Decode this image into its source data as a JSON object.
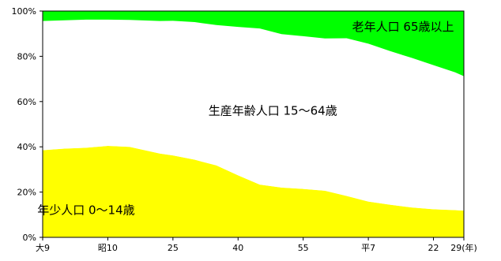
{
  "chart_data": {
    "type": "area",
    "stacked": true,
    "x": [
      1920,
      1925,
      1930,
      1935,
      1940,
      1947,
      1950,
      1955,
      1960,
      1965,
      1970,
      1975,
      1980,
      1985,
      1990,
      1995,
      2000,
      2005,
      2010,
      2015,
      2017
    ],
    "xticks": [
      {
        "x": 1920,
        "label": "大9"
      },
      {
        "x": 1935,
        "label": "昭10"
      },
      {
        "x": 1950,
        "label": "25"
      },
      {
        "x": 1965,
        "label": "40"
      },
      {
        "x": 1980,
        "label": "55"
      },
      {
        "x": 1995,
        "label": "平7"
      },
      {
        "x": 2010,
        "label": "22"
      },
      {
        "x": 2017,
        "label": "29(年)"
      }
    ],
    "xlim": [
      1920,
      2017
    ],
    "ylim": [
      0,
      100
    ],
    "yticks": [
      "0%",
      "20%",
      "40%",
      "60%",
      "80%",
      "100%"
    ],
    "series": [
      {
        "name": "年少人口 0〜14歳",
        "color": "#ffff00",
        "values": [
          38.5,
          39.2,
          39.6,
          40.4,
          40.0,
          37.0,
          36.2,
          34.3,
          31.8,
          27.4,
          23.3,
          22.0,
          21.4,
          20.6,
          18.3,
          15.8,
          14.4,
          13.2,
          12.4,
          12.0,
          11.8
        ]
      },
      {
        "name": "生産年齢人口 15〜64歳",
        "color": "#ffffff",
        "values": [
          57.1,
          56.7,
          56.6,
          55.8,
          56.1,
          58.6,
          59.5,
          60.8,
          62.0,
          65.6,
          69.0,
          67.8,
          67.5,
          67.3,
          69.7,
          69.8,
          67.9,
          66.1,
          63.7,
          60.9,
          59.4
        ]
      },
      {
        "name": "老年人口 65歳以上",
        "color": "#00ff00",
        "values": [
          4.4,
          4.1,
          3.8,
          3.8,
          3.9,
          4.4,
          4.3,
          4.9,
          6.2,
          7.0,
          7.7,
          10.2,
          11.1,
          12.1,
          12.0,
          14.4,
          17.7,
          20.7,
          23.9,
          27.1,
          28.8
        ]
      }
    ]
  }
}
